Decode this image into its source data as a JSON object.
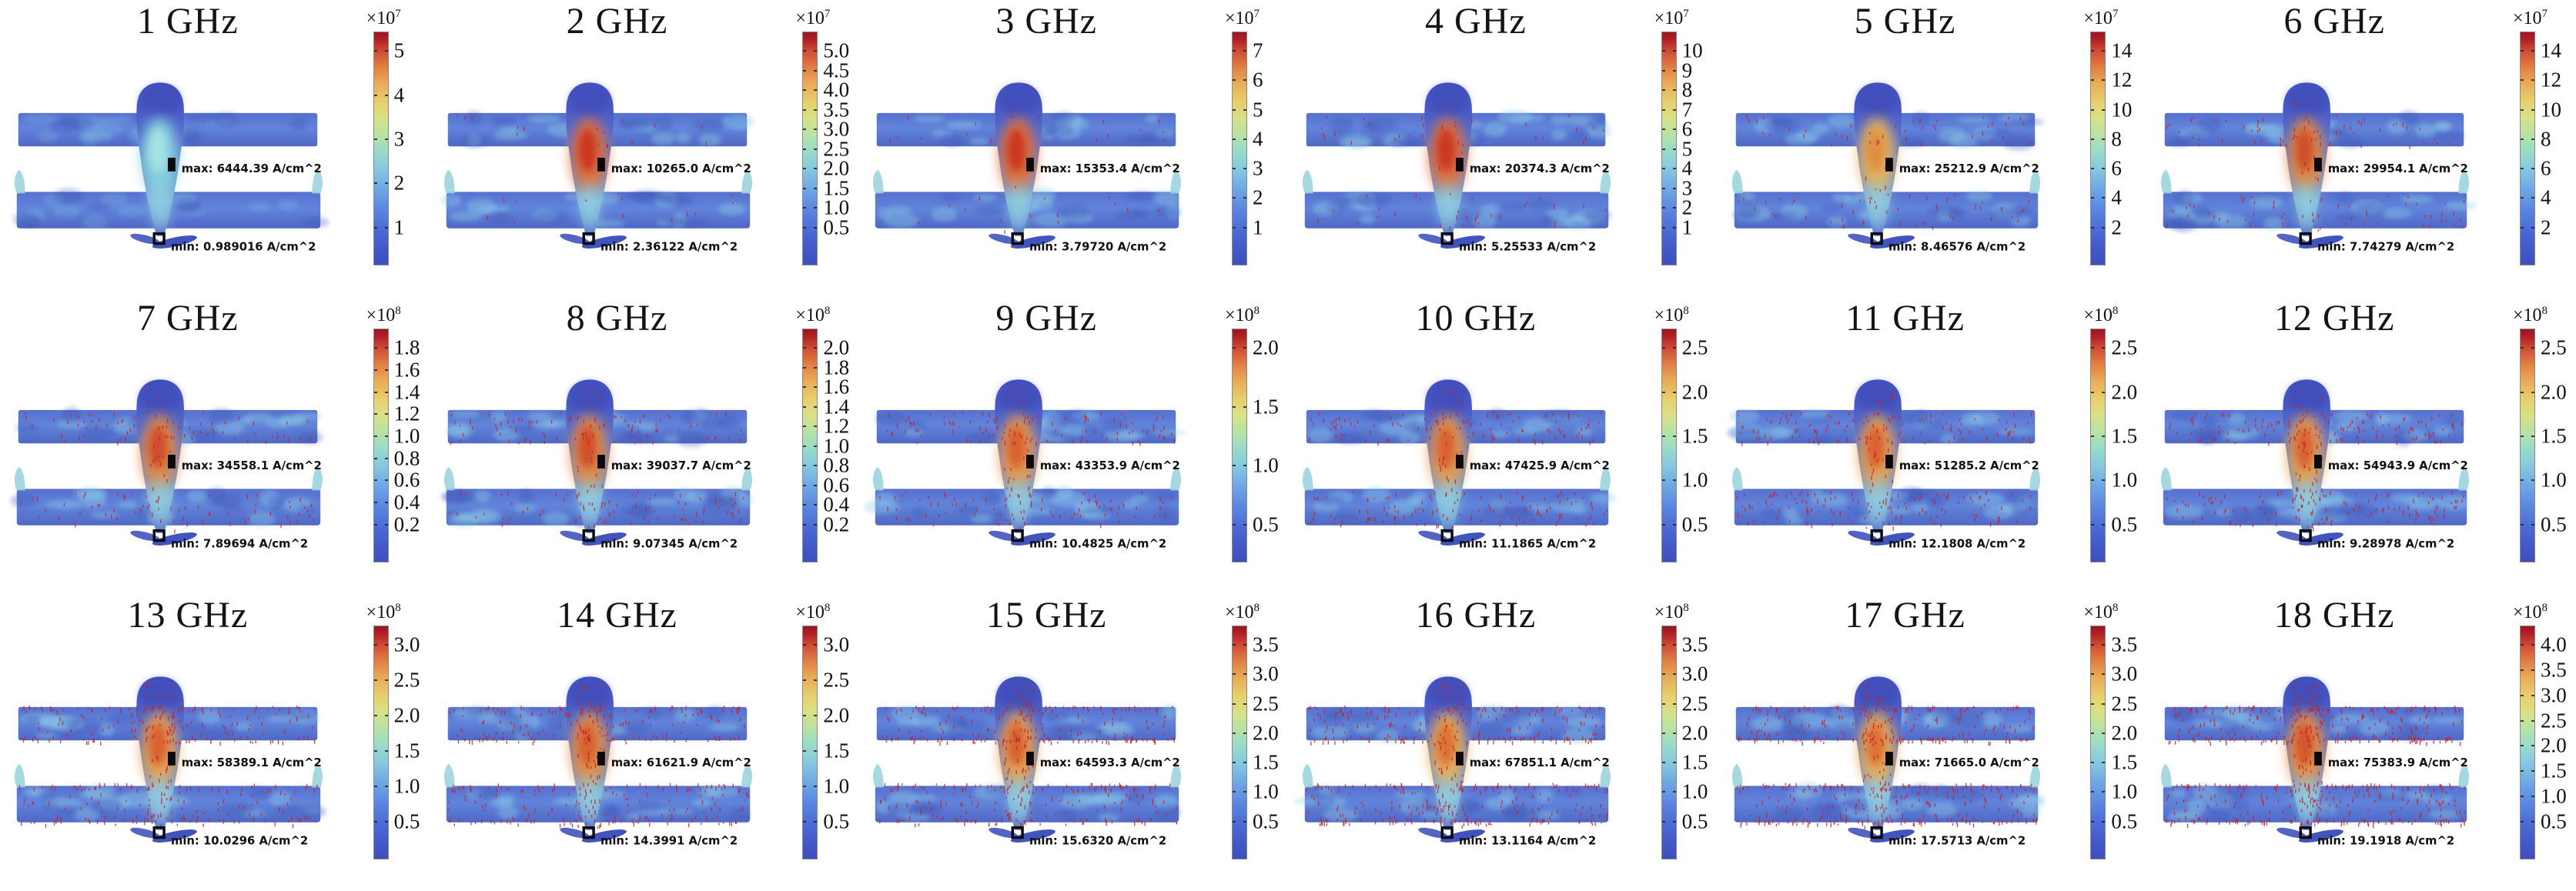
{
  "figure": {
    "scale_base": "×10",
    "arrow_color": "#c5232b",
    "colormap_stops": [
      "#3e4fc0 0%",
      "#4257c6 6%",
      "#4a68d4 14%",
      "#5b87e2 24%",
      "#6fa9e4 33%",
      "#84c8e2 41%",
      "#99dcc8 49%",
      "#b7e3a2 56%",
      "#d9e187 63%",
      "#e7cf6c 70%",
      "#e9ab56 78%",
      "#e17f44 85%",
      "#cf4b34 92%",
      "#b01f26 97%",
      "#9e1420 100%"
    ],
    "panels": [
      {
        "title": "1 GHz",
        "max_label": "max: 6444.39 A/cm^2",
        "min_label": "min: 0.989016 A/cm^2",
        "exp": "7",
        "ticks": [
          "5",
          "4",
          "3",
          "2",
          "1"
        ],
        "core": "#86d3da",
        "core_inner": "#a8e4e6",
        "density": 0
      },
      {
        "title": "2 GHz",
        "max_label": "max: 10265.0 A/cm^2",
        "min_label": "min: 2.36122 A/cm^2",
        "exp": "7",
        "ticks": [
          "5.0",
          "4.5",
          "4.0",
          "3.5",
          "3.0",
          "2.5",
          "2.0",
          "1.5",
          "1.0",
          "0.5"
        ],
        "core": "#e0703a",
        "core_inner": "#c9301f",
        "density": 1
      },
      {
        "title": "3 GHz",
        "max_label": "max: 15353.4 A/cm^2",
        "min_label": "min: 3.79720 A/cm^2",
        "exp": "7",
        "ticks": [
          "7",
          "6",
          "5",
          "4",
          "3",
          "2",
          "1"
        ],
        "core": "#e0703a",
        "core_inner": "#c9301f",
        "density": 1
      },
      {
        "title": "4 GHz",
        "max_label": "max: 20374.3 A/cm^2",
        "min_label": "min: 5.25533 A/cm^2",
        "exp": "7",
        "ticks": [
          "10",
          "9",
          "8",
          "7",
          "6",
          "5",
          "4",
          "3",
          "2",
          "1"
        ],
        "core": "#e0703a",
        "core_inner": "#c9301f",
        "density": 2
      },
      {
        "title": "5 GHz",
        "max_label": "max: 25212.9 A/cm^2",
        "min_label": "min: 8.46576 A/cm^2",
        "exp": "7",
        "ticks": [
          "14",
          "12",
          "10",
          "8",
          "6",
          "4",
          "2"
        ],
        "core": "#e7b457",
        "core_inner": "#e08a3c",
        "density": 3
      },
      {
        "title": "6 GHz",
        "max_label": "max: 29954.1 A/cm^2",
        "min_label": "min: 7.74279 A/cm^2",
        "exp": "7",
        "ticks": [
          "14",
          "12",
          "10",
          "8",
          "6",
          "4",
          "2"
        ],
        "core": "#e28a42",
        "core_inner": "#cf4a28",
        "density": 4
      },
      {
        "title": "7 GHz",
        "max_label": "max: 34558.1 A/cm^2",
        "min_label": "min: 7.89694 A/cm^2",
        "exp": "8",
        "ticks": [
          "1.8",
          "1.6",
          "1.4",
          "1.2",
          "1.0",
          "0.8",
          "0.6",
          "0.4",
          "0.2"
        ],
        "core": "#e28a42",
        "core_inner": "#cf4a28",
        "density": 5
      },
      {
        "title": "8 GHz",
        "max_label": "max: 39037.7 A/cm^2",
        "min_label": "min: 9.07345 A/cm^2",
        "exp": "8",
        "ticks": [
          "2.0",
          "1.8",
          "1.6",
          "1.4",
          "1.2",
          "1.0",
          "0.8",
          "0.6",
          "0.4",
          "0.2"
        ],
        "core": "#e28a42",
        "core_inner": "#cf4a28",
        "density": 6
      },
      {
        "title": "9 GHz",
        "max_label": "max: 43353.9 A/cm^2",
        "min_label": "min: 10.4825 A/cm^2",
        "exp": "8",
        "ticks": [
          "2.0",
          "1.5",
          "1.0",
          "0.5"
        ],
        "core": "#e89a4a",
        "core_inner": "#d85c2e",
        "density": 7
      },
      {
        "title": "10 GHz",
        "max_label": "max: 47425.9 A/cm^2",
        "min_label": "min: 11.1865 A/cm^2",
        "exp": "8",
        "ticks": [
          "2.5",
          "2.0",
          "1.5",
          "1.0",
          "0.5"
        ],
        "core": "#e89a4a",
        "core_inner": "#d85c2e",
        "density": 8
      },
      {
        "title": "11 GHz",
        "max_label": "max: 51285.2 A/cm^2",
        "min_label": "min: 12.1808 A/cm^2",
        "exp": "8",
        "ticks": [
          "2.5",
          "2.0",
          "1.5",
          "1.0",
          "0.5"
        ],
        "core": "#e8a04c",
        "core_inner": "#d85c2e",
        "density": 9
      },
      {
        "title": "12 GHz",
        "max_label": "max: 54943.9 A/cm^2",
        "min_label": "min: 9.28978 A/cm^2",
        "exp": "8",
        "ticks": [
          "2.5",
          "2.0",
          "1.5",
          "1.0",
          "0.5"
        ],
        "core": "#e8a04c",
        "core_inner": "#d85c2e",
        "density": 10
      },
      {
        "title": "13 GHz",
        "max_label": "max: 58389.1 A/cm^2",
        "min_label": "min: 10.0296 A/cm^2",
        "exp": "8",
        "ticks": [
          "3.0",
          "2.5",
          "2.0",
          "1.5",
          "1.0",
          "0.5"
        ],
        "core": "#e8a04c",
        "core_inner": "#d85c2e",
        "density": 12
      },
      {
        "title": "14 GHz",
        "max_label": "max: 61621.9 A/cm^2",
        "min_label": "min: 14.3991 A/cm^2",
        "exp": "8",
        "ticks": [
          "3.0",
          "2.5",
          "2.0",
          "1.5",
          "1.0",
          "0.5"
        ],
        "core": "#e59043",
        "core_inner": "#d85c2e",
        "density": 13
      },
      {
        "title": "15 GHz",
        "max_label": "max: 64593.3 A/cm^2",
        "min_label": "min: 15.6320 A/cm^2",
        "exp": "8",
        "ticks": [
          "3.5",
          "3.0",
          "2.5",
          "2.0",
          "1.5",
          "1.0",
          "0.5"
        ],
        "core": "#e8a04c",
        "core_inner": "#d85c2e",
        "density": 15
      },
      {
        "title": "16 GHz",
        "max_label": "max: 67851.1 A/cm^2",
        "min_label": "min: 13.1164 A/cm^2",
        "exp": "8",
        "ticks": [
          "3.5",
          "3.0",
          "2.5",
          "2.0",
          "1.5",
          "1.0",
          "0.5"
        ],
        "core": "#e9ad52",
        "core_inner": "#dd6a32",
        "density": 16
      },
      {
        "title": "17 GHz",
        "max_label": "max: 71665.0 A/cm^2",
        "min_label": "min: 17.5713 A/cm^2",
        "exp": "8",
        "ticks": [
          "3.5",
          "3.0",
          "2.5",
          "2.0",
          "1.5",
          "1.0",
          "0.5"
        ],
        "core": "#e9ad52",
        "core_inner": "#dd6a32",
        "density": 18
      },
      {
        "title": "18 GHz",
        "max_label": "max: 75383.9 A/cm^2",
        "min_label": "min: 19.1918 A/cm^2",
        "exp": "8",
        "ticks": [
          "4.0",
          "3.5",
          "3.0",
          "2.5",
          "2.0",
          "1.5",
          "1.0",
          "0.5"
        ],
        "core": "#e59043",
        "core_inner": "#d4502a",
        "density": 20
      }
    ]
  },
  "chart_data": {
    "type": "heatmap",
    "title": "Surface current density on UAV model at 1–18 GHz",
    "unit": "A/cm^2",
    "colormap": "jet (blue → cyan → yellow → red)",
    "legend_position": "vertical colorbar at right of each panel",
    "grid": "3 rows × 6 columns of panels",
    "panels": [
      {
        "frequency_GHz": 1,
        "max": 6444.39,
        "min": 0.989016,
        "colorbar_scale": 10000000.0,
        "colorbar_ticks": [
          1,
          2,
          3,
          4,
          5
        ]
      },
      {
        "frequency_GHz": 2,
        "max": 10265.0,
        "min": 2.36122,
        "colorbar_scale": 10000000.0,
        "colorbar_ticks": [
          0.5,
          1.0,
          1.5,
          2.0,
          2.5,
          3.0,
          3.5,
          4.0,
          4.5,
          5.0
        ]
      },
      {
        "frequency_GHz": 3,
        "max": 15353.4,
        "min": 3.7972,
        "colorbar_scale": 10000000.0,
        "colorbar_ticks": [
          1,
          2,
          3,
          4,
          5,
          6,
          7
        ]
      },
      {
        "frequency_GHz": 4,
        "max": 20374.3,
        "min": 5.25533,
        "colorbar_scale": 10000000.0,
        "colorbar_ticks": [
          1,
          2,
          3,
          4,
          5,
          6,
          7,
          8,
          9,
          10
        ]
      },
      {
        "frequency_GHz": 5,
        "max": 25212.9,
        "min": 8.46576,
        "colorbar_scale": 10000000.0,
        "colorbar_ticks": [
          2,
          4,
          6,
          8,
          10,
          12,
          14
        ]
      },
      {
        "frequency_GHz": 6,
        "max": 29954.1,
        "min": 7.74279,
        "colorbar_scale": 10000000.0,
        "colorbar_ticks": [
          2,
          4,
          6,
          8,
          10,
          12,
          14
        ]
      },
      {
        "frequency_GHz": 7,
        "max": 34558.1,
        "min": 7.89694,
        "colorbar_scale": 100000000.0,
        "colorbar_ticks": [
          0.2,
          0.4,
          0.6,
          0.8,
          1.0,
          1.2,
          1.4,
          1.6,
          1.8
        ]
      },
      {
        "frequency_GHz": 8,
        "max": 39037.7,
        "min": 9.07345,
        "colorbar_scale": 100000000.0,
        "colorbar_ticks": [
          0.2,
          0.4,
          0.6,
          0.8,
          1.0,
          1.2,
          1.4,
          1.6,
          1.8,
          2.0
        ]
      },
      {
        "frequency_GHz": 9,
        "max": 43353.9,
        "min": 10.4825,
        "colorbar_scale": 100000000.0,
        "colorbar_ticks": [
          0.5,
          1.0,
          1.5,
          2.0
        ]
      },
      {
        "frequency_GHz": 10,
        "max": 47425.9,
        "min": 11.1865,
        "colorbar_scale": 100000000.0,
        "colorbar_ticks": [
          0.5,
          1.0,
          1.5,
          2.0,
          2.5
        ]
      },
      {
        "frequency_GHz": 11,
        "max": 51285.2,
        "min": 12.1808,
        "colorbar_scale": 100000000.0,
        "colorbar_ticks": [
          0.5,
          1.0,
          1.5,
          2.0,
          2.5
        ]
      },
      {
        "frequency_GHz": 12,
        "max": 54943.9,
        "min": 9.28978,
        "colorbar_scale": 100000000.0,
        "colorbar_ticks": [
          0.5,
          1.0,
          1.5,
          2.0,
          2.5
        ]
      },
      {
        "frequency_GHz": 13,
        "max": 58389.1,
        "min": 10.0296,
        "colorbar_scale": 100000000.0,
        "colorbar_ticks": [
          0.5,
          1.0,
          1.5,
          2.0,
          2.5,
          3.0
        ]
      },
      {
        "frequency_GHz": 14,
        "max": 61621.9,
        "min": 14.3991,
        "colorbar_scale": 100000000.0,
        "colorbar_ticks": [
          0.5,
          1.0,
          1.5,
          2.0,
          2.5,
          3.0
        ]
      },
      {
        "frequency_GHz": 15,
        "max": 64593.3,
        "min": 15.632,
        "colorbar_scale": 100000000.0,
        "colorbar_ticks": [
          0.5,
          1.0,
          1.5,
          2.0,
          2.5,
          3.0,
          3.5
        ]
      },
      {
        "frequency_GHz": 16,
        "max": 67851.1,
        "min": 13.1164,
        "colorbar_scale": 100000000.0,
        "colorbar_ticks": [
          0.5,
          1.0,
          1.5,
          2.0,
          2.5,
          3.0,
          3.5
        ]
      },
      {
        "frequency_GHz": 17,
        "max": 71665.0,
        "min": 17.5713,
        "colorbar_scale": 100000000.0,
        "colorbar_ticks": [
          0.5,
          1.0,
          1.5,
          2.0,
          2.5,
          3.0,
          3.5
        ]
      },
      {
        "frequency_GHz": 18,
        "max": 75383.9,
        "min": 19.1918,
        "colorbar_scale": 100000000.0,
        "colorbar_ticks": [
          0.5,
          1.0,
          1.5,
          2.0,
          2.5,
          3.0,
          3.5,
          4.0
        ]
      }
    ]
  }
}
